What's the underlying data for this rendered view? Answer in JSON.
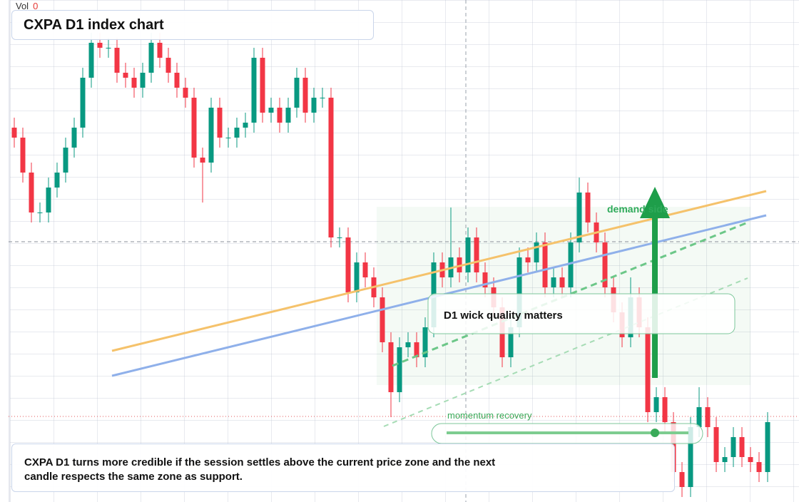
{
  "chart_data": {
    "type": "candlestick",
    "title": "CXPA D1 index chart",
    "volume_label": "Vol",
    "volume": 0,
    "annotations": [
      "demand side",
      "D1 wick quality matters",
      "momentum recovery"
    ],
    "caption": "CXPA D1 turns more credible if the session settles above the current price zone and the next candle respects the same zone as support.",
    "up_color": "#089981",
    "down_color": "#f23645",
    "ylim": [
      0,
      100
    ],
    "candles": [
      [
        75,
        77,
        71,
        73
      ],
      [
        73,
        75,
        64,
        66
      ],
      [
        66,
        68,
        56,
        58
      ],
      [
        58,
        60,
        56,
        58
      ],
      [
        58,
        65,
        56,
        63
      ],
      [
        63,
        68,
        61,
        66
      ],
      [
        66,
        73,
        64,
        71
      ],
      [
        71,
        77,
        69,
        75
      ],
      [
        75,
        87,
        73,
        85
      ],
      [
        85,
        94,
        83,
        92
      ],
      [
        92,
        94,
        89,
        91
      ],
      [
        91,
        93,
        89,
        91
      ],
      [
        91,
        93,
        84,
        86
      ],
      [
        86,
        88,
        83,
        85
      ],
      [
        85,
        87,
        81,
        83
      ],
      [
        83,
        88,
        81,
        86
      ],
      [
        86,
        94,
        84,
        92
      ],
      [
        92,
        94,
        87,
        89
      ],
      [
        89,
        91,
        84,
        86
      ],
      [
        86,
        88,
        81,
        83
      ],
      [
        83,
        85,
        79,
        81
      ],
      [
        81,
        83,
        67,
        69
      ],
      [
        69,
        71,
        60,
        68
      ],
      [
        68,
        81,
        66,
        79
      ],
      [
        79,
        81,
        71,
        73
      ],
      [
        73,
        75,
        71,
        73
      ],
      [
        73,
        77,
        71,
        75
      ],
      [
        75,
        78,
        73,
        76
      ],
      [
        76,
        91,
        74,
        89
      ],
      [
        89,
        91,
        76,
        78
      ],
      [
        78,
        81,
        76,
        79
      ],
      [
        79,
        81,
        74,
        76
      ],
      [
        76,
        81,
        74,
        79
      ],
      [
        79,
        87,
        77,
        85
      ],
      [
        85,
        87,
        76,
        78
      ],
      [
        78,
        83,
        76,
        81
      ],
      [
        81,
        83,
        79,
        81
      ],
      [
        81,
        83,
        51,
        53
      ],
      [
        53,
        55,
        51,
        53
      ],
      [
        53,
        55,
        40,
        42
      ],
      [
        42,
        50,
        40,
        48
      ],
      [
        48,
        50,
        43,
        45
      ],
      [
        45,
        47,
        39,
        41
      ],
      [
        41,
        43,
        30,
        32
      ],
      [
        32,
        34,
        17,
        22
      ],
      [
        22,
        33,
        20,
        31
      ],
      [
        31,
        34,
        29,
        32
      ],
      [
        32,
        34,
        27,
        29
      ],
      [
        29,
        37,
        27,
        35
      ],
      [
        35,
        50,
        33,
        48
      ],
      [
        48,
        50,
        43,
        45
      ],
      [
        45,
        59,
        43,
        49
      ],
      [
        49,
        51,
        44,
        46
      ],
      [
        46,
        55,
        44,
        53
      ],
      [
        53,
        55,
        44,
        46
      ],
      [
        46,
        48,
        41,
        43
      ],
      [
        43,
        45,
        37,
        39
      ],
      [
        39,
        41,
        27,
        29
      ],
      [
        29,
        37,
        27,
        35
      ],
      [
        35,
        51,
        33,
        49
      ],
      [
        49,
        51,
        46,
        48
      ],
      [
        48,
        54,
        46,
        52
      ],
      [
        52,
        54,
        41,
        43
      ],
      [
        43,
        47,
        41,
        45
      ],
      [
        45,
        47,
        41,
        43
      ],
      [
        43,
        54,
        41,
        52
      ],
      [
        52,
        65,
        50,
        62
      ],
      [
        62,
        64,
        54,
        56
      ],
      [
        56,
        58,
        50,
        52
      ],
      [
        52,
        54,
        41,
        43
      ],
      [
        43,
        45,
        36,
        38
      ],
      [
        38,
        40,
        31,
        33
      ],
      [
        33,
        45,
        31,
        41
      ],
      [
        41,
        43,
        33,
        35
      ],
      [
        35,
        37,
        16,
        18
      ],
      [
        18,
        23,
        16,
        21
      ],
      [
        21,
        23,
        14,
        16
      ],
      [
        16,
        18,
        4,
        6
      ],
      [
        6,
        8,
        1,
        3
      ],
      [
        3,
        17,
        1,
        15
      ],
      [
        15,
        23,
        13,
        19
      ],
      [
        19,
        21,
        13,
        15
      ],
      [
        15,
        17,
        6,
        8
      ],
      [
        8,
        11,
        6,
        9
      ],
      [
        9,
        15,
        7,
        13
      ],
      [
        13,
        15,
        7,
        9
      ],
      [
        9,
        11,
        6,
        8
      ],
      [
        8,
        10,
        4,
        6
      ],
      [
        6,
        18,
        4,
        16
      ]
    ]
  }
}
